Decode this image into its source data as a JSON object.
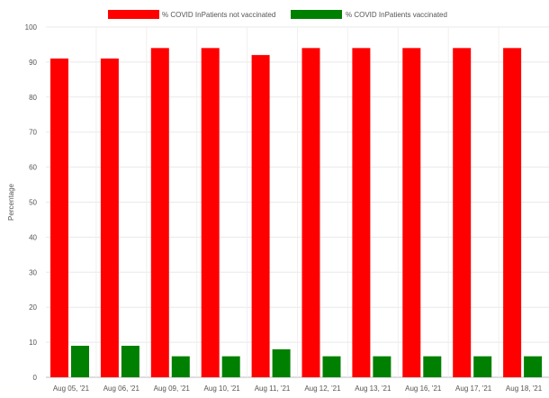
{
  "chart_data": {
    "type": "bar",
    "title": "",
    "xlabel": "",
    "ylabel": "Percentage",
    "ylim": [
      0,
      100
    ],
    "yticks": [
      0,
      10,
      20,
      30,
      40,
      50,
      60,
      70,
      80,
      90,
      100
    ],
    "grid": true,
    "legend_position": "top-center",
    "categories": [
      "Aug 05, '21",
      "Aug 06, '21",
      "Aug 09, '21",
      "Aug 10, '21",
      "Aug 11, '21",
      "Aug 12, '21",
      "Aug 13, '21",
      "Aug 16, '21",
      "Aug 17, '21",
      "Aug 18, '21"
    ],
    "series": [
      {
        "name": "% COVID InPatients not vaccinated",
        "color": "#ff0000",
        "values": [
          91,
          91,
          94,
          94,
          92,
          94,
          94,
          94,
          94,
          94
        ]
      },
      {
        "name": "% COVID InPatients vaccinated",
        "color": "#008000",
        "values": [
          9,
          9,
          6,
          6,
          8,
          6,
          6,
          6,
          6,
          6
        ]
      }
    ]
  }
}
